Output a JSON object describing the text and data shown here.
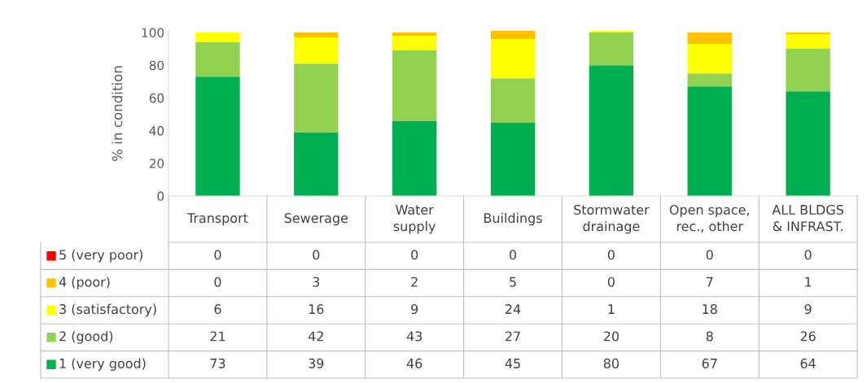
{
  "chart_data": {
    "type": "bar",
    "stacked": true,
    "ylabel": "% in condition",
    "categories": [
      "Transport",
      "Sewerage",
      "Water\nsupply",
      "Buildings",
      "Stormwater\ndrainage",
      "Open space,\nrec., other",
      "ALL BLDGS\n& INFRAST."
    ],
    "series": [
      {
        "name": "1 (very good)",
        "color": "#00b050",
        "values": [
          73,
          39,
          46,
          45,
          80,
          67,
          64
        ]
      },
      {
        "name": "2 (good)",
        "color": "#92d050",
        "values": [
          21,
          42,
          43,
          27,
          20,
          8,
          26
        ]
      },
      {
        "name": "3 (satisfactory)",
        "color": "#ffff00",
        "values": [
          6,
          16,
          9,
          24,
          1,
          18,
          9
        ]
      },
      {
        "name": "4 (poor)",
        "color": "#ffc000",
        "values": [
          0,
          3,
          2,
          5,
          0,
          7,
          1
        ]
      },
      {
        "name": "5 (very poor)",
        "color": "#ff0000",
        "values": [
          0,
          0,
          0,
          0,
          0,
          0,
          0
        ]
      }
    ],
    "ylim": [
      0,
      101
    ],
    "yticks": [
      0,
      20,
      40,
      60,
      80,
      100
    ],
    "grid": false,
    "legend": "bottom",
    "data_labels": true
  }
}
